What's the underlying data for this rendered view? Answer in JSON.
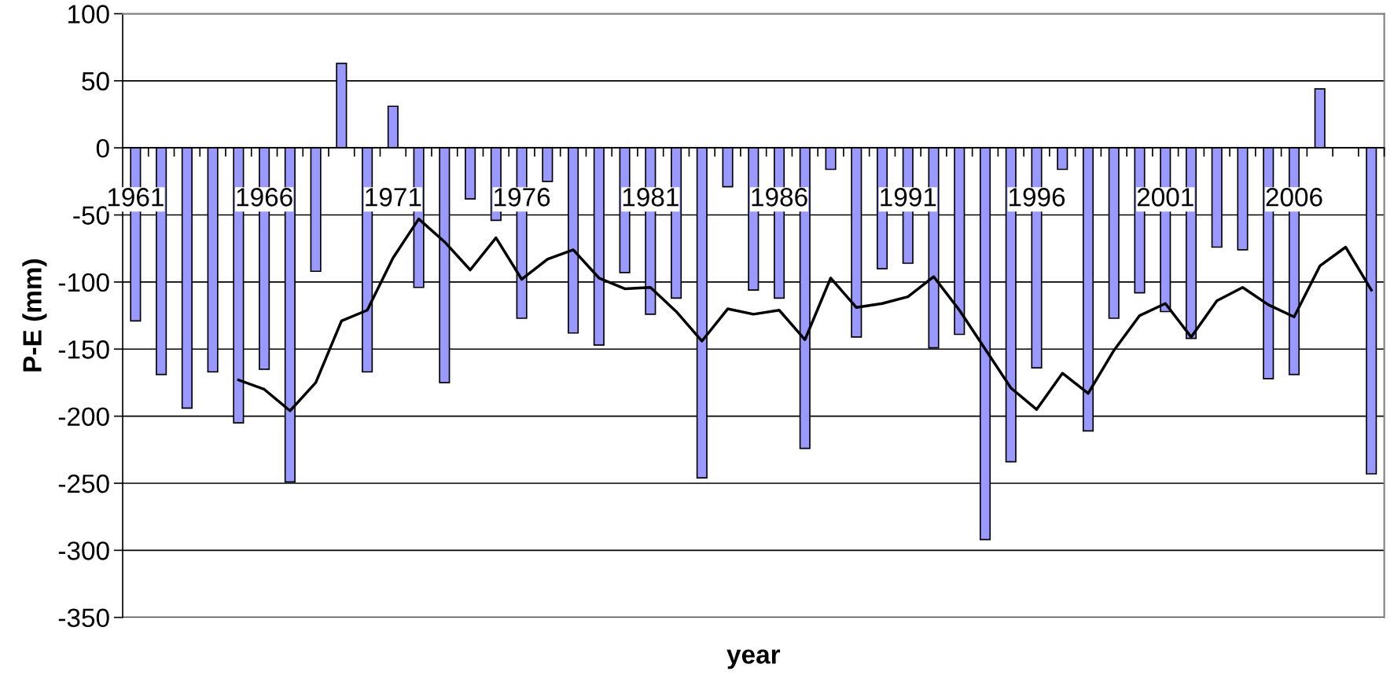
{
  "chart_data": {
    "type": "bar",
    "xlabel": "year",
    "ylabel": "P-E (mm)",
    "categories": [
      "1961",
      null,
      null,
      null,
      null,
      "1966",
      null,
      null,
      null,
      null,
      "1971",
      null,
      null,
      null,
      null,
      "1976",
      null,
      null,
      null,
      null,
      "1981",
      null,
      null,
      null,
      null,
      "1986",
      null,
      null,
      null,
      null,
      "1991",
      null,
      null,
      null,
      null,
      "1996",
      null,
      null,
      null,
      null,
      "2001",
      null,
      null,
      null,
      null,
      "2006",
      null,
      null,
      null
    ],
    "series": [
      {
        "type": "bar",
        "color": "#9999ff",
        "values": [
          -129,
          -169,
          -194,
          -167,
          -205,
          -165,
          -249,
          -92,
          63,
          -167,
          31,
          -104,
          -175,
          -38,
          -54,
          -127,
          -25,
          -138,
          -147,
          -93,
          -124,
          -112,
          -246,
          -29,
          -106,
          -112,
          -224,
          -16,
          -141,
          -90,
          -86,
          -149,
          -139,
          -292,
          -234,
          -164,
          -16,
          -211,
          -127,
          -108,
          -122,
          -142,
          -74,
          -76,
          -172,
          -169,
          44,
          null,
          -243
        ]
      },
      {
        "type": "line",
        "color": "#000000",
        "values": [
          null,
          null,
          null,
          null,
          -173,
          -180,
          -196,
          -175,
          -129,
          -121,
          -82,
          -53,
          -70,
          -91,
          -67,
          -98,
          -83,
          -76,
          -97,
          -105,
          -104,
          -122,
          -144,
          -120,
          -124,
          -121,
          -143,
          -97,
          -119,
          -116,
          -111,
          -96,
          -121,
          -150,
          -179,
          -195,
          -168,
          -183,
          -151,
          -125,
          -116,
          -141,
          -114,
          -104,
          -117,
          -126,
          -88,
          -74,
          -106
        ]
      }
    ],
    "ylim": [
      -350,
      100
    ],
    "yticks": [
      -350,
      -300,
      -250,
      -200,
      -150,
      -100,
      -50,
      0,
      50,
      100
    ],
    "grid": "y"
  }
}
